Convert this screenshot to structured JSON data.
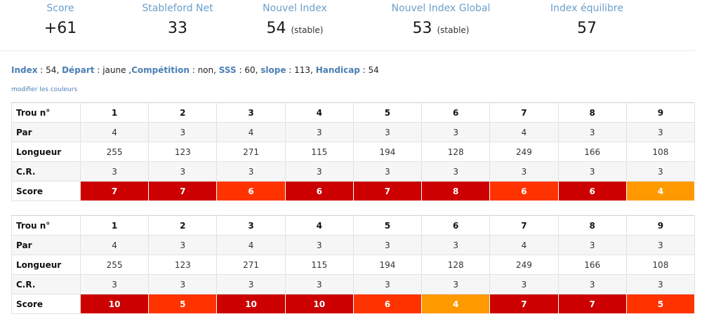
{
  "stats": [
    {
      "label": "Score",
      "value": "+61",
      "note": ""
    },
    {
      "label": "Stableford Net",
      "value": "33",
      "note": ""
    },
    {
      "label": "Nouvel Index",
      "value": "54",
      "note": "(stable)"
    },
    {
      "label": "Nouvel Index Global",
      "value": "53",
      "note": "(stable)"
    },
    {
      "label": "Index équilibre",
      "value": "57",
      "note": ""
    }
  ],
  "info": {
    "index_label": "Index",
    "index_value": "54",
    "depart_label": "Départ",
    "depart_value": "jaune",
    "competition_label": "Compétition",
    "competition_value": "non",
    "sss_label": "SSS",
    "sss_value": "60",
    "slope_label": "slope",
    "slope_value": "113",
    "handicap_label": "Handicap",
    "handicap_value": "54"
  },
  "colors_link": "modifier les couleurs",
  "colors": {
    "dark_red": "#cc0000",
    "red_orange": "#ff3300",
    "orange": "#ff9900",
    "label_blue": "#6a9fcc"
  },
  "tables": [
    {
      "labels": {
        "trou": "Trou n°",
        "par": "Par",
        "longueur": "Longueur",
        "cr": "C.R.",
        "score": "Score"
      },
      "holes": [
        "1",
        "2",
        "3",
        "4",
        "5",
        "6",
        "7",
        "8",
        "9"
      ],
      "par": [
        "4",
        "3",
        "4",
        "3",
        "3",
        "3",
        "4",
        "3",
        "3"
      ],
      "longueur": [
        "255",
        "123",
        "271",
        "115",
        "194",
        "128",
        "249",
        "166",
        "108"
      ],
      "cr": [
        "3",
        "3",
        "3",
        "3",
        "3",
        "3",
        "3",
        "3",
        "3"
      ],
      "score": [
        "7",
        "7",
        "6",
        "6",
        "7",
        "8",
        "6",
        "6",
        "4"
      ],
      "score_colors": [
        "#cc0000",
        "#cc0000",
        "#ff3300",
        "#cc0000",
        "#cc0000",
        "#cc0000",
        "#ff3300",
        "#cc0000",
        "#ff9900"
      ]
    },
    {
      "labels": {
        "trou": "Trou n°",
        "par": "Par",
        "longueur": "Longueur",
        "cr": "C.R.",
        "score": "Score"
      },
      "holes": [
        "1",
        "2",
        "3",
        "4",
        "5",
        "6",
        "7",
        "8",
        "9"
      ],
      "par": [
        "4",
        "3",
        "4",
        "3",
        "3",
        "3",
        "4",
        "3",
        "3"
      ],
      "longueur": [
        "255",
        "123",
        "271",
        "115",
        "194",
        "128",
        "249",
        "166",
        "108"
      ],
      "cr": [
        "3",
        "3",
        "3",
        "3",
        "3",
        "3",
        "3",
        "3",
        "3"
      ],
      "score": [
        "10",
        "5",
        "10",
        "10",
        "6",
        "4",
        "7",
        "7",
        "5"
      ],
      "score_colors": [
        "#cc0000",
        "#ff3300",
        "#cc0000",
        "#cc0000",
        "#ff3300",
        "#ff9900",
        "#cc0000",
        "#cc0000",
        "#ff3300"
      ]
    }
  ]
}
